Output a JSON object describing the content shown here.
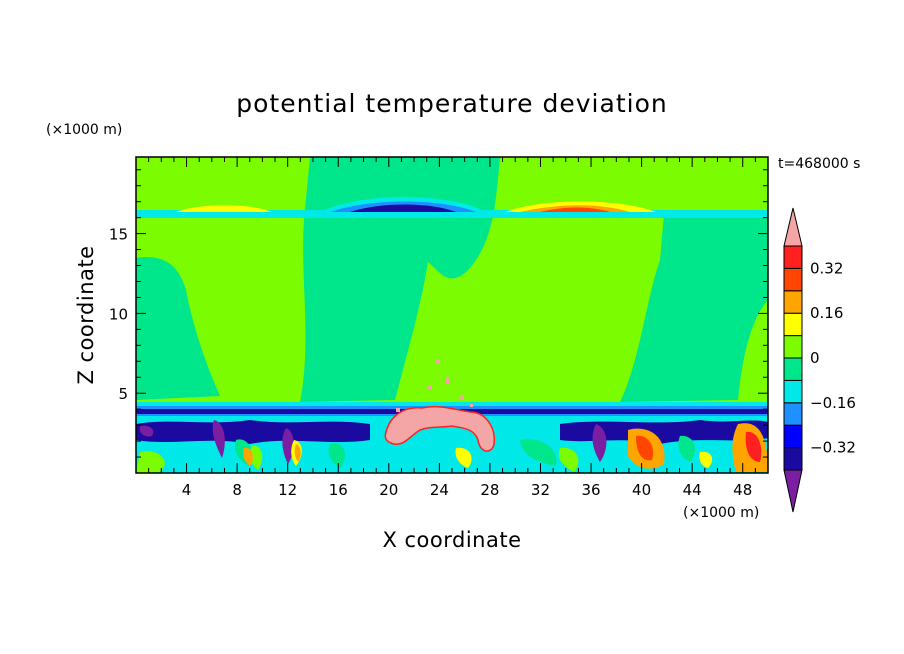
{
  "chart_data": {
    "type": "heatmap",
    "title": "potential temperature deviation",
    "xlabel": "X coordinate",
    "ylabel": "Z coordinate",
    "x_unit": "(×1000 m)",
    "y_unit": "(×1000 m)",
    "time_label": "t=468000 s",
    "xlim": [
      0,
      50
    ],
    "ylim": [
      0,
      19.8
    ],
    "x_ticks": [
      4,
      8,
      12,
      16,
      20,
      24,
      28,
      32,
      36,
      40,
      44,
      48
    ],
    "y_ticks": [
      5,
      10,
      15
    ],
    "grid": false,
    "colorbar": {
      "placement": "right",
      "levels": [
        -0.4,
        -0.32,
        -0.24,
        -0.16,
        -0.08,
        0,
        0.08,
        0.16,
        0.24,
        0.32,
        0.4
      ],
      "labels": [
        "0.32",
        "0.16",
        "0",
        "−0.16",
        "−0.32"
      ],
      "label_values": [
        0.32,
        0.16,
        0,
        -0.16,
        -0.32
      ],
      "colors": [
        "#7a1fa2",
        "#1a0aa0",
        "#0000ff",
        "#1e90ff",
        "#00e8e8",
        "#00e68a",
        "#7cfc00",
        "#ffff00",
        "#ffa500",
        "#ff4500",
        "#ff2020",
        "#f4a6a6"
      ]
    }
  }
}
